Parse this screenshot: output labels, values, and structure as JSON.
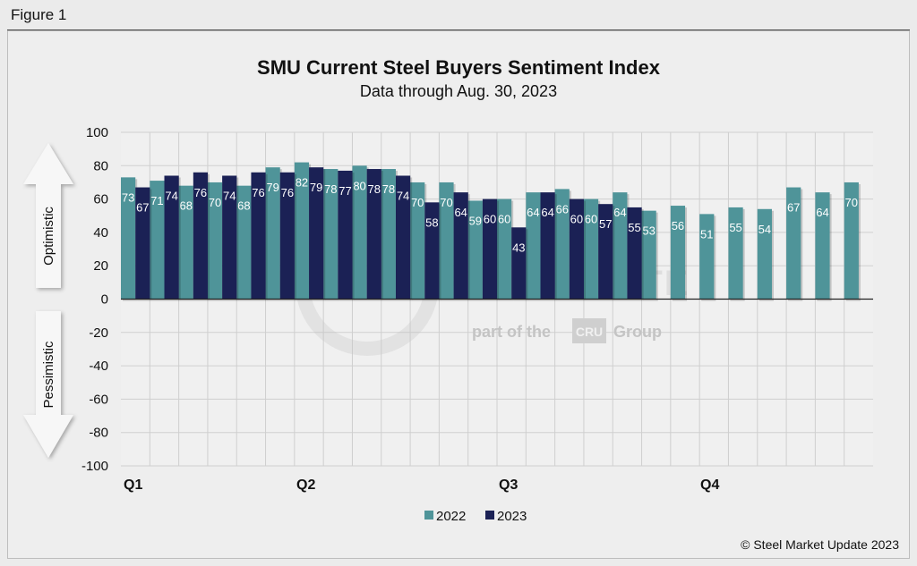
{
  "figure_label": "Figure 1",
  "copyright": "© Steel Market Update 2023",
  "watermark": {
    "brand": "STEEL MARKET UPDATE",
    "tagline_pre": "part of the",
    "tagline_logo": "CRU",
    "tagline_post": "Group"
  },
  "colors": {
    "series_2022": "#4f9499",
    "series_2023": "#1b2155",
    "arrow_fill": "#f7f7f7",
    "plot_bg": "#f0f0f0",
    "grid": "#cfcfcf"
  },
  "chart_data": {
    "type": "bar",
    "title": "SMU Current Steel Buyers Sentiment Index",
    "subtitle": "Data through Aug. 30, 2023",
    "xlabel": "",
    "ylabel": "",
    "ylim": [
      -100,
      100
    ],
    "yticks": [
      "100",
      "80",
      "60",
      "40",
      "20",
      "0",
      "-20",
      "-40",
      "-60",
      "-80",
      "-100"
    ],
    "grid": true,
    "legend_position": "bottom",
    "quarter_labels": [
      "Q1",
      "Q2",
      "Q3",
      "Q4"
    ],
    "side_labels": {
      "positive": "Optimistic",
      "negative": "Pessimistic"
    },
    "series": [
      {
        "name": "2022",
        "values": [
          73,
          71,
          68,
          70,
          68,
          79,
          82,
          78,
          80,
          78,
          70,
          70,
          59,
          60,
          64,
          66,
          60,
          64,
          53,
          56,
          51,
          55,
          54,
          67,
          64,
          70
        ]
      },
      {
        "name": "2023",
        "values": [
          67,
          74,
          76,
          74,
          76,
          76,
          79,
          77,
          78,
          74,
          58,
          64,
          60,
          43,
          64,
          60,
          57,
          55
        ]
      }
    ]
  }
}
